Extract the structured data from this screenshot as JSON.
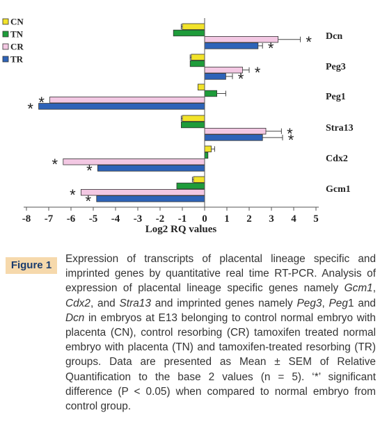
{
  "chart_data": {
    "type": "bar",
    "orientation": "horizontal",
    "xlabel": "Log2 RQ values",
    "xlim": [
      -8,
      5
    ],
    "xticks": [
      "-8",
      "-7",
      "-6",
      "-5",
      "-4",
      "-3",
      "-2",
      "-1",
      "0",
      "1",
      "2",
      "3",
      "4",
      "5"
    ],
    "categories": [
      "Dcn",
      "Peg3",
      "Peg1",
      "Stra13",
      "Cdx2",
      "Gcm1"
    ],
    "legend_position": "top-left",
    "series": [
      {
        "name": "CN",
        "color": "#f2e32a",
        "values": [
          -1.0,
          -0.6,
          -0.3,
          -1.0,
          0.3,
          -0.5
        ],
        "errors": [
          0.05,
          0.05,
          0.0,
          0.05,
          0.15,
          0.05
        ],
        "significant": [
          false,
          false,
          false,
          false,
          false,
          false
        ]
      },
      {
        "name": "TN",
        "color": "#1e9c3a",
        "values": [
          -1.4,
          -0.65,
          0.55,
          -1.05,
          0.15,
          -1.25
        ],
        "errors": [
          0.0,
          0.0,
          0.4,
          0.0,
          0.0,
          0.0
        ],
        "significant": [
          false,
          false,
          false,
          false,
          false,
          false
        ]
      },
      {
        "name": "CR",
        "color": "#f3c8e3",
        "values": [
          3.3,
          1.7,
          -6.95,
          2.75,
          -6.35,
          -5.55
        ],
        "errors": [
          1.0,
          0.3,
          0.0,
          0.7,
          0.0,
          0.0
        ],
        "significant": [
          true,
          true,
          true,
          true,
          true,
          true
        ]
      },
      {
        "name": "TR",
        "color": "#2e63b8",
        "values": [
          2.4,
          0.95,
          -7.45,
          2.6,
          -4.8,
          -4.85
        ],
        "errors": [
          0.2,
          0.3,
          0.0,
          0.9,
          0.0,
          0.0
        ],
        "significant": [
          true,
          true,
          true,
          true,
          true,
          true
        ]
      }
    ]
  },
  "caption": {
    "badge": "Figure 1",
    "text_html": "Expression of transcripts of placental lineage specific and imprinted genes by quantitative real time RT-PCR. Analysis of expression of placental lineage specific genes namely <i>Gcm1</i>, <i>Cdx2</i>, and <i>Stra13</i> and imprinted genes namely <i>Peg3</i>, <i>Peg</i>1 and <i>Dcn</i> in embryos at E13 belonging to control normal embryo with placenta (CN), control resorbing (CR) tamoxifen treated normal embryo with placenta (TN) and tamoxifen-treated resorbing (TR) groups. Data are presented as Mean ± SEM of Relative Quantification to the base 2 values (n = 5). ‘*’ significant difference (P &lt; 0.05) when compared to normal embryo from control group."
  }
}
